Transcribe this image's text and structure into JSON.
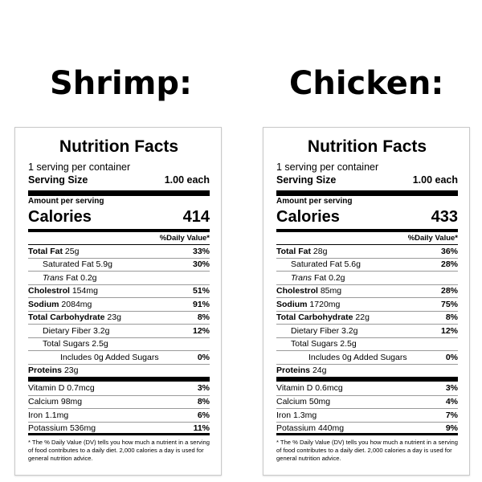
{
  "headings": {
    "left": "Shrimp:",
    "right": "Chicken:"
  },
  "labels": [
    {
      "title": "Nutrition Facts",
      "servings": "1 serving per container",
      "serving_size_label": "Serving Size",
      "serving_size_value": "1.00 each",
      "amount_per_serving": "Amount per serving",
      "calories_label": "Calories",
      "calories_value": "414",
      "dv_header": "%Daily Value*",
      "rows": [
        {
          "name": "Total Fat",
          "amount": "25g",
          "pct": "33%"
        },
        {
          "name": "Saturated Fat",
          "amount": "5.9g",
          "pct": "30%"
        },
        {
          "name": "Trans",
          "amount": "Fat 0.2g",
          "pct": ""
        },
        {
          "name": "Cholestrol",
          "amount": "154mg",
          "pct": "51%"
        },
        {
          "name": "Sodium",
          "amount": "2084mg",
          "pct": "91%"
        },
        {
          "name": "Total Carbohydrate",
          "amount": "23g",
          "pct": "8%"
        },
        {
          "name": "Dietary Fiber",
          "amount": "3.2g",
          "pct": "12%"
        },
        {
          "name": "Total Sugars",
          "amount": "2.5g",
          "pct": ""
        },
        {
          "name": "Includes 0g Added Sugars",
          "amount": "",
          "pct": "0%"
        },
        {
          "name": "Proteins",
          "amount": "23g",
          "pct": ""
        },
        {
          "name": "Vitamin D",
          "amount": "0.7mcg",
          "pct": "3%"
        },
        {
          "name": "Calcium",
          "amount": "98mg",
          "pct": "8%"
        },
        {
          "name": "Iron",
          "amount": "1.1mg",
          "pct": "6%"
        },
        {
          "name": "Potassium",
          "amount": "536mg",
          "pct": "11%"
        }
      ],
      "footnote": "* The % Daily Value (DV) tells you how much a nutrient in a serving of food contributes to a daily diet. 2,000 calories a day is used for general nutrition advice."
    },
    {
      "title": "Nutrition Facts",
      "servings": "1 serving per container",
      "serving_size_label": "Serving Size",
      "serving_size_value": "1.00 each",
      "amount_per_serving": "Amount per serving",
      "calories_label": "Calories",
      "calories_value": "433",
      "dv_header": "%Daily Value*",
      "rows": [
        {
          "name": "Total Fat",
          "amount": "28g",
          "pct": "36%"
        },
        {
          "name": "Saturated Fat",
          "amount": "5.6g",
          "pct": "28%"
        },
        {
          "name": "Trans",
          "amount": "Fat 0.2g",
          "pct": ""
        },
        {
          "name": "Cholestrol",
          "amount": "85mg",
          "pct": "28%"
        },
        {
          "name": "Sodium",
          "amount": "1720mg",
          "pct": "75%"
        },
        {
          "name": "Total Carbohydrate",
          "amount": "22g",
          "pct": "8%"
        },
        {
          "name": "Dietary Fiber",
          "amount": "3.2g",
          "pct": "12%"
        },
        {
          "name": "Total Sugars",
          "amount": "2.5g",
          "pct": ""
        },
        {
          "name": "Includes 0g Added Sugars",
          "amount": "",
          "pct": "0%"
        },
        {
          "name": "Proteins",
          "amount": "24g",
          "pct": ""
        },
        {
          "name": "Vitamin D",
          "amount": "0.6mcg",
          "pct": "3%"
        },
        {
          "name": "Calcium",
          "amount": "50mg",
          "pct": "4%"
        },
        {
          "name": "Iron",
          "amount": "1.3mg",
          "pct": "7%"
        },
        {
          "name": "Potassium",
          "amount": "440mg",
          "pct": "9%"
        }
      ],
      "footnote": "* The % Daily Value (DV) tells you how much a nutrient in a serving of food contributes to a daily diet. 2,000 calories a day is used for general nutrition advice."
    }
  ]
}
